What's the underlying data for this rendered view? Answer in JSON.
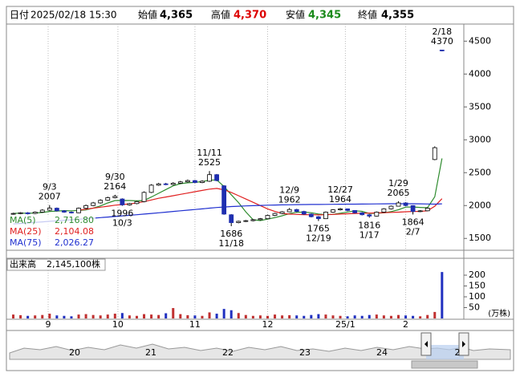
{
  "header": {
    "date_label": "日付",
    "date": "2025/02/18 15:30",
    "open_label": "始値",
    "open": "4,365",
    "high_label": "高値",
    "high": "4,370",
    "low_label": "安値",
    "low": "4,345",
    "close_label": "終値",
    "close": "4,355"
  },
  "chart_data": [
    {
      "type": "candlestick",
      "x": [
        0,
        1,
        2,
        3,
        4,
        5,
        6,
        7,
        8,
        9,
        10,
        11,
        12,
        13,
        14,
        15,
        16,
        17,
        18,
        19,
        20,
        21,
        22,
        23,
        24,
        25,
        26,
        27,
        28,
        29,
        30,
        31,
        32,
        33,
        34,
        35,
        36,
        37,
        38,
        39,
        40,
        41,
        42,
        43,
        44,
        45,
        46,
        47,
        48,
        49,
        50,
        51,
        52,
        53,
        54,
        55,
        56,
        57,
        58,
        59
      ],
      "open": [
        1870,
        1880,
        1890,
        1880,
        1900,
        1930,
        1960,
        1920,
        1900,
        1890,
        1960,
        2000,
        2040,
        2080,
        2120,
        2100,
        2010,
        2030,
        2060,
        2200,
        2310,
        2330,
        2320,
        2340,
        2360,
        2380,
        2350,
        2370,
        2470,
        2300,
        1860,
        1740,
        1760,
        1770,
        1785,
        1800,
        1850,
        1880,
        1905,
        1940,
        1910,
        1870,
        1830,
        1800,
        1900,
        1935,
        1950,
        1925,
        1890,
        1860,
        1840,
        1900,
        1950,
        1990,
        2040,
        2000,
        1910,
        1920,
        2700,
        4365
      ],
      "high": [
        1890,
        1900,
        1900,
        1910,
        1945,
        2007,
        1970,
        1930,
        1910,
        1970,
        2015,
        2055,
        2095,
        2135,
        2164,
        2110,
        2040,
        2070,
        2215,
        2325,
        2345,
        2345,
        2355,
        2375,
        2395,
        2390,
        2385,
        2525,
        2480,
        2310,
        1870,
        1770,
        1780,
        1795,
        1810,
        1860,
        1890,
        1915,
        1962,
        1950,
        1920,
        1880,
        1840,
        1910,
        1945,
        1964,
        1955,
        1930,
        1900,
        1870,
        1910,
        1960,
        2000,
        2065,
        2050,
        2005,
        1930,
        1970,
        2900,
        4370
      ],
      "low": [
        1860,
        1870,
        1865,
        1870,
        1890,
        1920,
        1910,
        1890,
        1880,
        1885,
        1950,
        1990,
        2030,
        2070,
        2110,
        1996,
        2000,
        2020,
        2050,
        2190,
        2300,
        2310,
        2310,
        2330,
        2350,
        2340,
        2340,
        2360,
        2370,
        1860,
        1686,
        1730,
        1750,
        1760,
        1775,
        1795,
        1840,
        1870,
        1900,
        1900,
        1860,
        1820,
        1765,
        1795,
        1890,
        1925,
        1915,
        1880,
        1850,
        1816,
        1835,
        1895,
        1940,
        1985,
        1990,
        1864,
        1900,
        1915,
        2690,
        4345
      ],
      "close": [
        1880,
        1890,
        1875,
        1900,
        1930,
        1960,
        1920,
        1900,
        1890,
        1960,
        2000,
        2040,
        2080,
        2120,
        2140,
        2010,
        2030,
        2060,
        2200,
        2310,
        2330,
        2320,
        2340,
        2360,
        2380,
        2350,
        2370,
        2470,
        2380,
        1870,
        1740,
        1760,
        1770,
        1785,
        1800,
        1850,
        1880,
        1905,
        1940,
        1910,
        1870,
        1830,
        1800,
        1900,
        1935,
        1950,
        1925,
        1890,
        1860,
        1840,
        1900,
        1950,
        1990,
        2040,
        2000,
        1910,
        1920,
        1960,
        2880,
        4355
      ],
      "series": [
        {
          "name": "MA(5)",
          "color": "#2e8b2e",
          "value_label": "2,716.80",
          "values": [
            1880,
            1885,
            1882,
            1886,
            1895,
            1911,
            1917,
            1922,
            1920,
            1926,
            1934,
            1962,
            1994,
            2040,
            2076,
            2078,
            2076,
            2072,
            2076,
            2130,
            2186,
            2244,
            2300,
            2332,
            2346,
            2352,
            2364,
            2386,
            2390,
            2288,
            2164,
            2044,
            1904,
            1785,
            1771,
            1793,
            1817,
            1844,
            1877,
            1897,
            1901,
            1891,
            1870,
            1862,
            1867,
            1883,
            1902,
            1920,
            1912,
            1880,
            1883,
            1888,
            1908,
            1936,
            1976,
            1978,
            1972,
            1966,
            2134,
            2716.8
          ]
        },
        {
          "name": "MA(25)",
          "color": "#e02020",
          "value_label": "2,104.08",
          "values": [
            null,
            null,
            null,
            null,
            null,
            null,
            null,
            null,
            null,
            1930,
            1945,
            1960,
            1975,
            1990,
            2005,
            2015,
            2025,
            2040,
            2060,
            2085,
            2110,
            2130,
            2150,
            2170,
            2190,
            2210,
            2230,
            2250,
            2260,
            2240,
            2200,
            2150,
            2100,
            2050,
            2000,
            1950,
            1910,
            1880,
            1870,
            1865,
            1862,
            1860,
            1858,
            1860,
            1865,
            1870,
            1875,
            1880,
            1882,
            1885,
            1888,
            1892,
            1896,
            1900,
            1905,
            1910,
            1912,
            1920,
            1990,
            2104.08
          ]
        },
        {
          "name": "MA(75)",
          "color": "#2030d0",
          "value_label": "2,026.27",
          "values": [
            1720,
            1728,
            1736,
            1744,
            1752,
            1760,
            1768,
            1776,
            1784,
            1792,
            1800,
            1808,
            1816,
            1825,
            1834,
            1843,
            1852,
            1861,
            1870,
            1880,
            1890,
            1900,
            1910,
            1920,
            1930,
            1940,
            1950,
            1960,
            1970,
            1978,
            1985,
            1990,
            1994,
            1998,
            2002,
            2005,
            2008,
            2010,
            2012,
            2014,
            2015,
            2016,
            2017,
            2018,
            2019,
            2020,
            2021,
            2022,
            2023,
            2024,
            2025,
            2026,
            2027,
            2028,
            2028,
            2027,
            2026,
            2024,
            2022,
            2026.27
          ]
        }
      ],
      "annotations": [
        {
          "date": "9/3",
          "value": 2007,
          "x": 5,
          "position": "above"
        },
        {
          "date": "9/30",
          "value": 2164,
          "x": 14,
          "position": "above"
        },
        {
          "date": "10/3",
          "value": 1996,
          "x": 15,
          "position": "below"
        },
        {
          "date": "11/11",
          "value": 2525,
          "x": 27,
          "position": "above"
        },
        {
          "date": "11/18",
          "value": 1686,
          "x": 30,
          "position": "below"
        },
        {
          "date": "12/9",
          "value": 1962,
          "x": 38,
          "position": "above"
        },
        {
          "date": "12/19",
          "value": 1765,
          "x": 42,
          "position": "below"
        },
        {
          "date": "12/27",
          "value": 1964,
          "x": 45,
          "position": "above"
        },
        {
          "date": "1/17",
          "value": 1816,
          "x": 49,
          "position": "below"
        },
        {
          "date": "1/29",
          "value": 2065,
          "x": 53,
          "position": "above"
        },
        {
          "date": "2/7",
          "value": 1864,
          "x": 55,
          "position": "below"
        },
        {
          "date": "2/18",
          "value": 4370,
          "x": 59,
          "position": "above"
        }
      ],
      "up_color": "#ffffff",
      "down_color": "#1f2fb0",
      "xlim": [
        -0.5,
        62
      ],
      "xticks": [
        {
          "value": 4.8,
          "label": "9"
        },
        {
          "value": 14.4,
          "label": "10"
        },
        {
          "value": 25,
          "label": "11"
        },
        {
          "value": 35,
          "label": "12"
        },
        {
          "value": 45.7,
          "label": "25/1"
        },
        {
          "value": 54,
          "label": "2"
        }
      ],
      "ylim": [
        1320,
        4760
      ],
      "yticks": [
        1500,
        2000,
        2500,
        3000,
        3500,
        4000,
        4500
      ],
      "grid": true
    },
    {
      "type": "bar",
      "legend": {
        "name": "出来高",
        "value": "2,145,100株"
      },
      "unit": "(万株)",
      "x": [
        0,
        1,
        2,
        3,
        4,
        5,
        6,
        7,
        8,
        9,
        10,
        11,
        12,
        13,
        14,
        15,
        16,
        17,
        18,
        19,
        20,
        21,
        22,
        23,
        24,
        25,
        26,
        27,
        28,
        29,
        30,
        31,
        32,
        33,
        34,
        35,
        36,
        37,
        38,
        39,
        40,
        41,
        42,
        43,
        44,
        45,
        46,
        47,
        48,
        49,
        50,
        51,
        52,
        53,
        54,
        55,
        56,
        57,
        58,
        59
      ],
      "values": [
        18,
        15,
        12,
        14,
        16,
        22,
        14,
        12,
        10,
        18,
        20,
        16,
        14,
        18,
        22,
        25,
        14,
        12,
        20,
        18,
        16,
        24,
        48,
        20,
        15,
        14,
        12,
        28,
        22,
        44,
        38,
        25,
        16,
        12,
        14,
        12,
        18,
        14,
        15,
        14,
        12,
        16,
        20,
        18,
        14,
        12,
        10,
        14,
        12,
        16,
        18,
        14,
        12,
        16,
        14,
        12,
        10,
        16,
        30,
        214.51
      ],
      "color": "#c03030",
      "alt_color": "#2030c0",
      "xlim": [
        -0.5,
        62
      ],
      "xticks": [
        {
          "value": 4.8,
          "label": "9"
        },
        {
          "value": 14.4,
          "label": "10"
        },
        {
          "value": 25,
          "label": "11"
        },
        {
          "value": 35,
          "label": "12"
        },
        {
          "value": 45.7,
          "label": "25/1"
        },
        {
          "value": 54,
          "label": "2"
        }
      ],
      "ylim": [
        0,
        278
      ],
      "yticks": [
        50,
        100,
        150,
        200
      ],
      "grid": true
    }
  ],
  "navigator": {
    "labels": [
      "20",
      "21",
      "22",
      "23",
      "24",
      "2"
    ]
  }
}
